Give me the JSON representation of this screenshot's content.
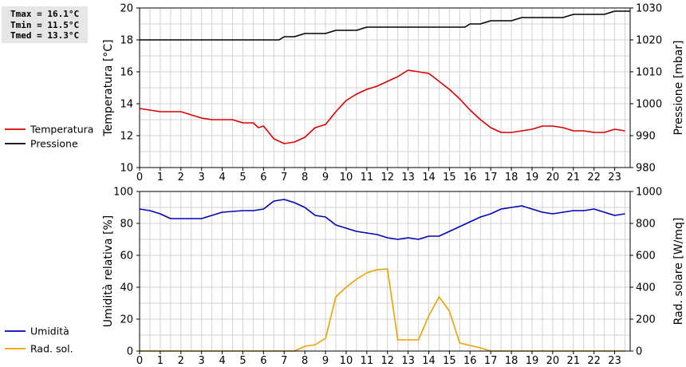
{
  "stats": {
    "tmax": "Tmax = 16.1°C",
    "tmin": "Tmin = 11.5°C",
    "tmed": "Tmed = 13.3°C"
  },
  "colors": {
    "temperature": "#dd0000",
    "pressure": "#000000",
    "humidity": "#0000bb",
    "radiation": "#f0a000",
    "grid": "#d2d2d2",
    "frame": "#000000"
  },
  "chart_data": [
    {
      "type": "line",
      "title": "",
      "x_ticks": [
        "0",
        "1",
        "2",
        "3",
        "4",
        "5",
        "6",
        "7",
        "8",
        "9",
        "10",
        "11",
        "12",
        "13",
        "14",
        "15",
        "16",
        "17",
        "18",
        "19",
        "20",
        "21",
        "22",
        "23"
      ],
      "xlim": [
        0,
        23.75
      ],
      "ylabel": "Temperatura [°C]",
      "ylim": [
        10,
        20
      ],
      "y_ticks": [
        10,
        12,
        14,
        16,
        18,
        20
      ],
      "y2label": "Pressione [mbar]",
      "y2lim": [
        980,
        1030
      ],
      "y2_ticks": [
        980,
        990,
        1000,
        1010,
        1020,
        1030
      ],
      "grid": true,
      "legend_position": "left",
      "series": [
        {
          "name": "Temperatura",
          "axis": "left",
          "color": "#dd0000",
          "x": [
            0,
            1,
            2,
            3,
            3.5,
            4.5,
            5,
            5.5,
            5.75,
            6,
            6.5,
            7,
            7.5,
            8,
            8.5,
            9,
            9.5,
            10,
            10.5,
            11,
            11.5,
            12,
            12.5,
            13,
            13.5,
            14,
            14.5,
            15,
            15.5,
            16,
            16.5,
            17,
            17.5,
            18,
            18.5,
            19,
            19.5,
            20,
            20.5,
            21,
            21.5,
            22,
            22.5,
            23,
            23.5
          ],
          "values": [
            13.7,
            13.5,
            13.5,
            13.1,
            13.0,
            13.0,
            12.8,
            12.8,
            12.5,
            12.6,
            11.8,
            11.5,
            11.6,
            11.9,
            12.5,
            12.7,
            13.5,
            14.2,
            14.6,
            14.9,
            15.1,
            15.4,
            15.7,
            16.1,
            16.0,
            15.9,
            15.4,
            14.9,
            14.3,
            13.6,
            13.0,
            12.5,
            12.2,
            12.2,
            12.3,
            12.4,
            12.6,
            12.6,
            12.5,
            12.3,
            12.3,
            12.2,
            12.2,
            12.4,
            12.3
          ]
        },
        {
          "name": "Pressione",
          "axis": "right",
          "color": "#000000",
          "x": [
            0,
            6.75,
            7.0,
            7.5,
            8.0,
            9.0,
            9.5,
            10.5,
            11.0,
            15.75,
            16.0,
            16.5,
            17.0,
            18.0,
            18.5,
            20.5,
            21.0,
            22.5,
            23.0,
            23.75
          ],
          "values": [
            1020,
            1020,
            1021,
            1021,
            1022,
            1022,
            1023,
            1023,
            1024,
            1024,
            1025,
            1025,
            1026,
            1026,
            1027,
            1027,
            1028,
            1028,
            1029,
            1029
          ]
        }
      ]
    },
    {
      "type": "line",
      "title": "",
      "x_ticks": [
        "0",
        "1",
        "2",
        "3",
        "4",
        "5",
        "6",
        "7",
        "8",
        "9",
        "10",
        "11",
        "12",
        "13",
        "14",
        "15",
        "16",
        "17",
        "18",
        "19",
        "20",
        "21",
        "22",
        "23"
      ],
      "xlim": [
        0,
        23.75
      ],
      "ylabel": "Umidità relativa [%]",
      "ylim": [
        0,
        100
      ],
      "y_ticks": [
        0,
        20,
        40,
        60,
        80,
        100
      ],
      "y2label": "Rad. solare [W/mq]",
      "y2lim": [
        0,
        1000
      ],
      "y2_ticks": [
        0,
        200,
        400,
        600,
        800,
        1000
      ],
      "grid": true,
      "legend_position": "left",
      "series": [
        {
          "name": "Umidità",
          "axis": "left",
          "color": "#0000bb",
          "x": [
            0,
            0.5,
            1,
            1.5,
            2,
            3,
            3.5,
            4,
            5,
            5.5,
            6,
            6.5,
            7,
            7.5,
            8,
            8.5,
            9,
            9.5,
            10,
            10.5,
            11,
            11.5,
            12,
            12.5,
            13,
            13.5,
            14,
            14.5,
            15,
            15.5,
            16,
            16.5,
            17,
            17.5,
            18,
            18.5,
            19,
            19.5,
            20,
            20.5,
            21,
            21.5,
            22,
            22.5,
            23,
            23.5
          ],
          "values": [
            89,
            88,
            86,
            83,
            83,
            83,
            85,
            87,
            88,
            88,
            89,
            94,
            95,
            93,
            90,
            85,
            84,
            79,
            77,
            75,
            74,
            73,
            71,
            70,
            71,
            70,
            72,
            72,
            75,
            78,
            81,
            84,
            86,
            89,
            90,
            91,
            89,
            87,
            86,
            87,
            88,
            88,
            89,
            87,
            85,
            86
          ]
        },
        {
          "name": "Rad. sol.",
          "axis": "right",
          "color": "#f0a000",
          "x": [
            0,
            7.5,
            8.0,
            8.5,
            9.0,
            9.5,
            10.0,
            10.5,
            11.0,
            11.5,
            12.0,
            12.5,
            13.5,
            14.0,
            14.5,
            15.0,
            15.5,
            16.5,
            17.0,
            23.5
          ],
          "values": [
            0,
            0,
            30,
            40,
            80,
            340,
            400,
            450,
            490,
            510,
            515,
            70,
            70,
            220,
            340,
            250,
            50,
            20,
            0,
            0
          ]
        }
      ]
    }
  ]
}
